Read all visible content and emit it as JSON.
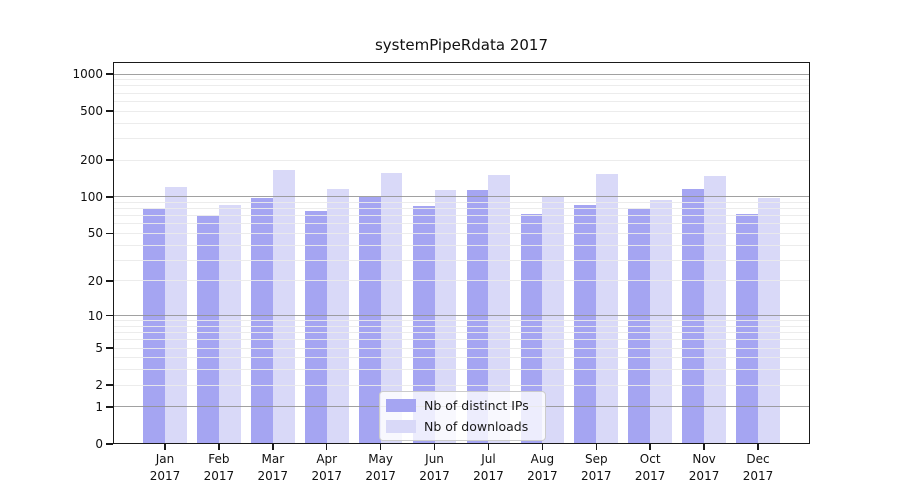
{
  "title": "systemPipeRdata 2017",
  "chart_data": {
    "type": "bar",
    "title": "systemPipeRdata 2017",
    "categories": [
      "Jan",
      "Feb",
      "Mar",
      "Apr",
      "May",
      "Jun",
      "Jul",
      "Aug",
      "Sep",
      "Oct",
      "Nov",
      "Dec"
    ],
    "x_tick_year": "2017",
    "series": [
      {
        "name": "Nb of distinct IPs",
        "color": "#a5a5f2",
        "values": [
          80,
          69,
          97,
          77,
          99,
          84,
          113,
          73,
          86,
          79,
          115,
          72
        ]
      },
      {
        "name": "Nb of downloads",
        "color": "#d9d9f8",
        "values": [
          120,
          85,
          165,
          115,
          157,
          113,
          152,
          99,
          153,
          95,
          147,
          97
        ]
      }
    ],
    "y_axis": {
      "scale": "log10(value+1)",
      "tick_values": [
        1000,
        500,
        200,
        100,
        50,
        20,
        10,
        5,
        2,
        1,
        0
      ],
      "range_top": 1150
    },
    "grid": {
      "major_values": [
        1,
        10,
        100,
        1000
      ],
      "minor_values": [
        2,
        3,
        4,
        5,
        6,
        7,
        8,
        9,
        20,
        30,
        40,
        50,
        60,
        70,
        80,
        90,
        200,
        300,
        400,
        500,
        600,
        700,
        800,
        900
      ],
      "major_color": "rgba(145,145,145,0.85)",
      "minor_color": "rgba(234,234,234,0.92)",
      "drawn_over_bars": true
    },
    "legend_position": "bottom-center"
  }
}
